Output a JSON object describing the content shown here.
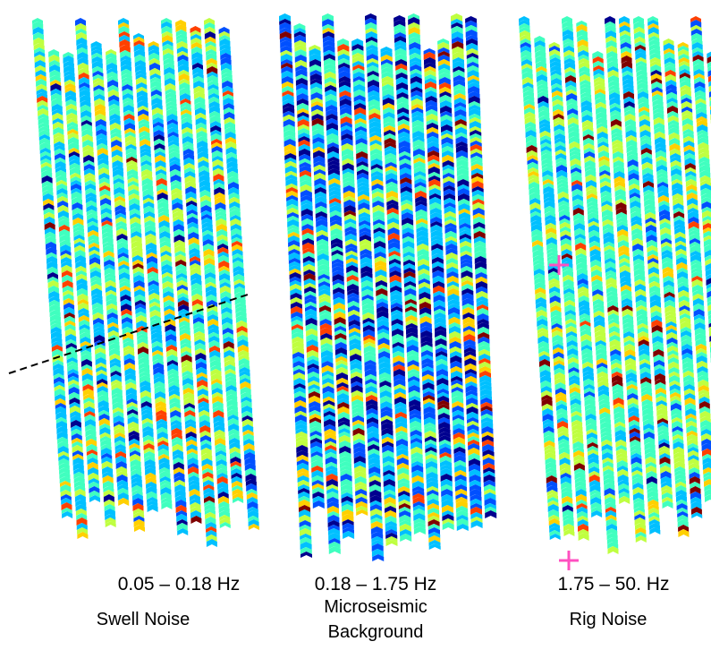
{
  "panels": [
    {
      "frequency": "0.05 – 0.18 Hz",
      "title": "Swell Noise",
      "title_line2": ""
    },
    {
      "frequency": "0.18 – 1.75 Hz",
      "title": "Microseismic",
      "title_line2": "Background"
    },
    {
      "frequency": "1.75 – 50. Hz",
      "title": "Rig Noise",
      "title_line2": ""
    }
  ],
  "colormap": [
    "#00008f",
    "#0050ff",
    "#00c0ff",
    "#40ffbf",
    "#bfff40",
    "#ffd000",
    "#ff4000",
    "#800000"
  ],
  "marker_color": "#ff50c0",
  "dash_color": "#000000"
}
